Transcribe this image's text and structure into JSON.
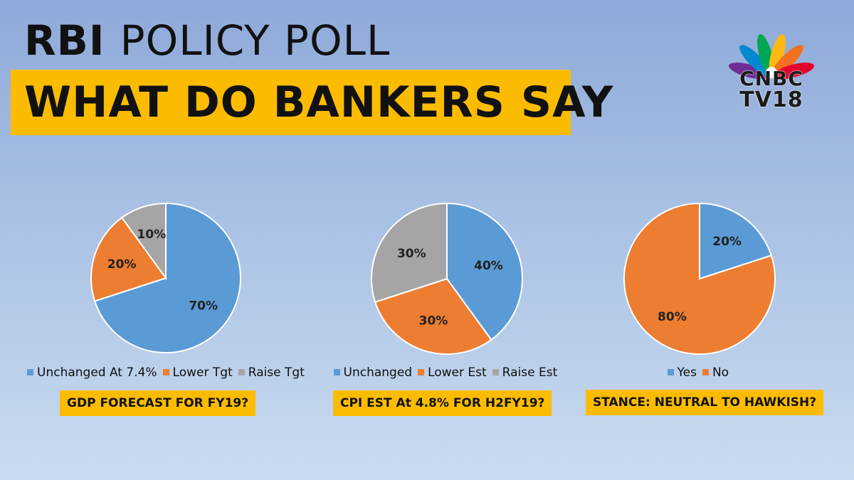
{
  "header": {
    "title_bold": "RBI",
    "title_light": "POLICY POLL",
    "banner": "WHAT DO BANKERS SAY"
  },
  "logo": {
    "line1": "CNBC",
    "line2": "TV18"
  },
  "colors": {
    "blue": "#5b9bd5",
    "orange": "#ed7d31",
    "gray": "#a5a5a5",
    "yellow": "#fbbc00"
  },
  "chart_data": [
    {
      "type": "pie",
      "categories": [
        "Unchanged At 7.4%",
        "Lower Tgt",
        "Raise Tgt"
      ],
      "values": [
        70,
        20,
        10
      ],
      "labels": [
        "70%",
        "20%",
        "10%"
      ],
      "colors": [
        "#5b9bd5",
        "#ed7d31",
        "#a5a5a5"
      ],
      "title": "GDP FORECAST FOR FY19?",
      "legend": "bottom"
    },
    {
      "type": "pie",
      "categories": [
        "Unchanged",
        "Lower Est",
        "Raise Est"
      ],
      "values": [
        40,
        30,
        30
      ],
      "labels": [
        "40%",
        "30%",
        "30%"
      ],
      "colors": [
        "#5b9bd5",
        "#ed7d31",
        "#a5a5a5"
      ],
      "title": "CPI EST At 4.8% FOR H2FY19?",
      "legend": "bottom"
    },
    {
      "type": "pie",
      "categories": [
        "Yes",
        "No"
      ],
      "values": [
        20,
        80
      ],
      "labels": [
        "20%",
        "80%"
      ],
      "colors": [
        "#5b9bd5",
        "#ed7d31"
      ],
      "title": "STANCE: NEUTRAL TO HAWKISH?",
      "legend": "bottom"
    }
  ]
}
